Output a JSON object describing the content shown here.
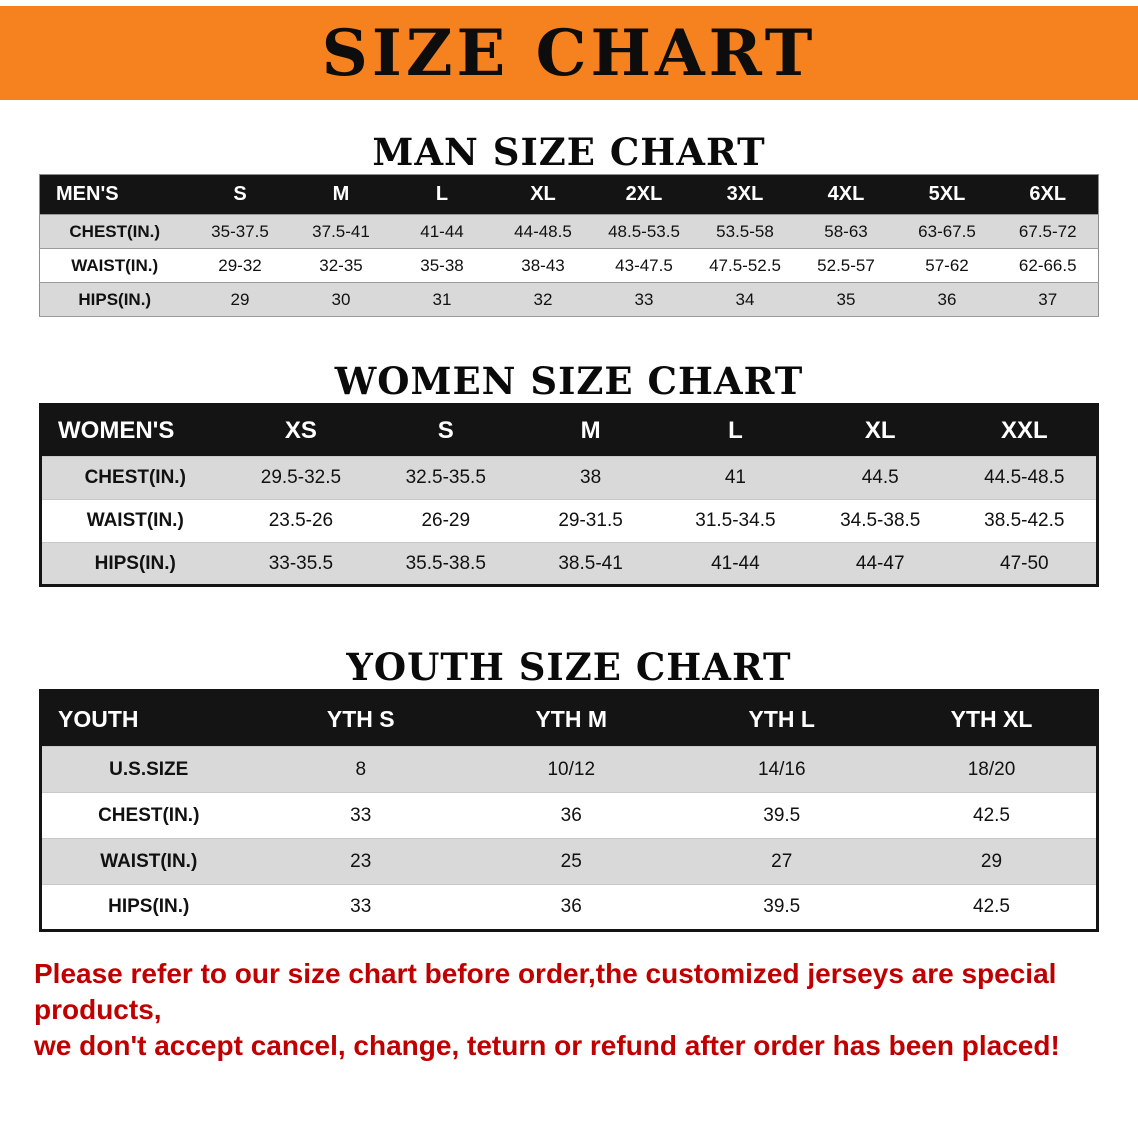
{
  "banner": {
    "title": "SIZE CHART"
  },
  "men": {
    "heading": "MAN SIZE CHART",
    "corner": "MEN'S",
    "sizes": [
      "S",
      "M",
      "L",
      "XL",
      "2XL",
      "3XL",
      "4XL",
      "5XL",
      "6XL"
    ],
    "rows": [
      {
        "label": "CHEST(IN.)",
        "values": [
          "35-37.5",
          "37.5-41",
          "41-44",
          "44-48.5",
          "48.5-53.5",
          "53.5-58",
          "58-63",
          "63-67.5",
          "67.5-72"
        ]
      },
      {
        "label": "WAIST(IN.)",
        "values": [
          "29-32",
          "32-35",
          "35-38",
          "38-43",
          "43-47.5",
          "47.5-52.5",
          "52.5-57",
          "57-62",
          "62-66.5"
        ]
      },
      {
        "label": "HIPS(IN.)",
        "values": [
          "29",
          "30",
          "31",
          "32",
          "33",
          "34",
          "35",
          "36",
          "37"
        ]
      }
    ]
  },
  "women": {
    "heading": "WOMEN SIZE CHART",
    "corner": "WOMEN'S",
    "sizes": [
      "XS",
      "S",
      "M",
      "L",
      "XL",
      "XXL"
    ],
    "rows": [
      {
        "label": "CHEST(IN.)",
        "values": [
          "29.5-32.5",
          "32.5-35.5",
          "38",
          "41",
          "44.5",
          "44.5-48.5"
        ]
      },
      {
        "label": "WAIST(IN.)",
        "values": [
          "23.5-26",
          "26-29",
          "29-31.5",
          "31.5-34.5",
          "34.5-38.5",
          "38.5-42.5"
        ]
      },
      {
        "label": "HIPS(IN.)",
        "values": [
          "33-35.5",
          "35.5-38.5",
          "38.5-41",
          "41-44",
          "44-47",
          "47-50"
        ]
      }
    ]
  },
  "youth": {
    "heading": "YOUTH SIZE CHART",
    "corner": "YOUTH",
    "sizes": [
      "YTH S",
      "YTH M",
      "YTH L",
      "YTH XL"
    ],
    "rows": [
      {
        "label": "U.S.SIZE",
        "values": [
          "8",
          "10/12",
          "14/16",
          "18/20"
        ]
      },
      {
        "label": "CHEST(IN.)",
        "values": [
          "33",
          "36",
          "39.5",
          "42.5"
        ]
      },
      {
        "label": "WAIST(IN.)",
        "values": [
          "23",
          "25",
          "27",
          "29"
        ]
      },
      {
        "label": "HIPS(IN.)",
        "values": [
          "33",
          "36",
          "39.5",
          "42.5"
        ]
      }
    ]
  },
  "footer": {
    "line1": "Please refer to our size chart before order,the customized jerseys are special products,",
    "line2": "we don't accept cancel, change, teturn or refund after order has been placed!"
  },
  "colors": {
    "banner_bg": "#f5821f",
    "header_bg": "#141414",
    "row_shade": "#d9d9d9",
    "footer_text": "#c00000"
  }
}
